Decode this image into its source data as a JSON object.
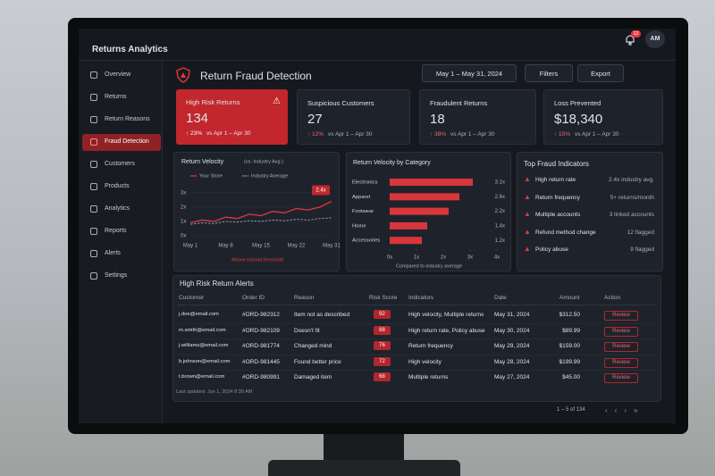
{
  "app": {
    "title": "Returns Analytics",
    "notifications": "12",
    "avatar": "AM"
  },
  "nav": [
    "Overview",
    "Returns",
    "Return Reasons",
    "Fraud Detection",
    "Customers",
    "Products",
    "Analytics",
    "Reports",
    "Alerts",
    "Settings"
  ],
  "nav_active": 3,
  "header": {
    "title": "Return Fraud Detection",
    "date_range": "May 1 – May 31, 2024",
    "filters": "Filters",
    "export": "Export"
  },
  "kpis": [
    {
      "label": "High Risk Returns",
      "value": "134",
      "change": "↑ 23%",
      "period": "vs Apr 1 – Apr 30"
    },
    {
      "label": "Suspicious Customers",
      "value": "27",
      "change": "↑ 12%",
      "period": "vs Apr 1 – Apr 30"
    },
    {
      "label": "Fraudulent Returns",
      "value": "18",
      "change": "↑ 38%",
      "period": "vs Apr 1 – Apr 30"
    },
    {
      "label": "Loss Prevented",
      "value": "$18,340",
      "change": "↑ 15%",
      "period": "vs Apr 1 – Apr 30"
    }
  ],
  "chart_data": [
    {
      "type": "line",
      "title": "Return Velocity",
      "subtitle": "(vs. Industry Avg.)",
      "categories": [
        "May 1",
        null,
        null,
        "May 8",
        null,
        null,
        "May 15",
        null,
        null,
        "May 22",
        null,
        null,
        "May 31"
      ],
      "series": [
        {
          "name": "Your Store",
          "color": "#e0393e",
          "values": [
            0.9,
            1.1,
            1.0,
            1.3,
            1.2,
            1.5,
            1.4,
            1.7,
            1.6,
            1.9,
            1.8,
            2.0,
            2.4
          ]
        },
        {
          "name": "Industry Average",
          "color": "#9aa0a8",
          "dashed": true,
          "values": [
            0.8,
            0.9,
            0.85,
            1.0,
            0.95,
            1.05,
            1.0,
            1.1,
            1.05,
            1.15,
            1.1,
            1.2,
            1.25
          ]
        }
      ],
      "ylim": [
        0,
        3.3
      ],
      "yticks": [
        {
          "value": 0,
          "label": "0x"
        },
        {
          "value": 1,
          "label": "1x"
        },
        {
          "value": 2,
          "label": "2x"
        },
        {
          "value": 3,
          "label": "3x"
        }
      ],
      "callout": "2.4x",
      "annotation": "Above normal threshold"
    },
    {
      "type": "bar",
      "orientation": "horizontal",
      "title": "Return Velocity by Category",
      "color": "#d8363b",
      "categories": [
        "Electronics",
        "Apparel",
        "Footwear",
        "Home",
        "Accessories"
      ],
      "values": [
        3.1,
        2.6,
        2.2,
        1.4,
        1.2
      ],
      "value_labels": [
        "3.1x",
        "2.6x",
        "2.2x",
        "1.4x",
        "1.2x"
      ],
      "xlim": [
        0,
        4
      ],
      "xticks": [
        {
          "value": 0,
          "label": "0x"
        },
        {
          "value": 1,
          "label": "1x"
        },
        {
          "value": 2,
          "label": "2x"
        },
        {
          "value": 3,
          "label": "3x"
        },
        {
          "value": 4,
          "label": "4x"
        }
      ],
      "x_label": "Compared to industry average"
    }
  ],
  "indicators": {
    "title": "Top Fraud Indicators",
    "items": [
      {
        "label": "High return rate",
        "detail": "2.4x industry avg."
      },
      {
        "label": "Return frequency",
        "detail": "5+ returns/month"
      },
      {
        "label": "Multiple accounts",
        "detail": "3 linked accounts"
      },
      {
        "label": "Refund method change",
        "detail": "12 flagged"
      },
      {
        "label": "Policy abuse",
        "detail": "9 flagged"
      }
    ]
  },
  "table": {
    "title": "High Risk Return Alerts",
    "columns": [
      "Customer",
      "Order ID",
      "Reason",
      "Risk Score",
      "Indicators",
      "Date",
      "Amount",
      "Action"
    ],
    "rows": [
      [
        "j.doe@email.com",
        "#ORD-982312",
        "Item not as described",
        "92",
        "High velocity, Multiple returns",
        "May 31, 2024",
        "$312.50",
        "Review"
      ],
      [
        "m.smith@email.com",
        "#ORD-982109",
        "Doesn't fit",
        "88",
        "High return rate, Policy abuse",
        "May 30, 2024",
        "$89.99",
        "Review"
      ],
      [
        "j.williams@email.com",
        "#ORD-981774",
        "Changed mind",
        "76",
        "Return frequency",
        "May 29, 2024",
        "$159.00",
        "Review"
      ],
      [
        "b.johnson@email.com",
        "#ORD-981445",
        "Found better price",
        "72",
        "High velocity",
        "May 28, 2024",
        "$199.99",
        "Review"
      ],
      [
        "t.brown@email.com",
        "#ORD-980991",
        "Damaged item",
        "68",
        "Multiple returns",
        "May 27, 2024",
        "$45.00",
        "Review"
      ]
    ],
    "updated": "Last updated: Jun 1, 2024 8:30 AM",
    "pagination": "1 – 5 of 134"
  }
}
